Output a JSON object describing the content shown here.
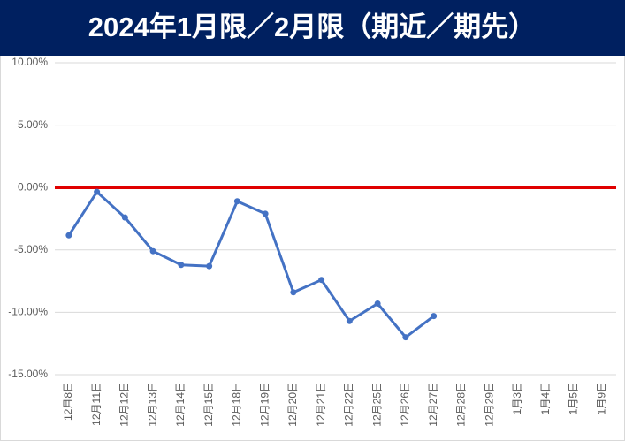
{
  "chart_data": {
    "type": "line",
    "title": "2024年1月限／2月限（期近／期先）",
    "categories": [
      "12月8日",
      "12月11日",
      "12月12日",
      "12月13日",
      "12月14日",
      "12月15日",
      "12月18日",
      "12月19日",
      "12月20日",
      "12月21日",
      "12月22日",
      "12月25日",
      "12月26日",
      "12月27日",
      "12月28日",
      "12月29日",
      "1月3日",
      "1月4日",
      "1月5日",
      "1月9日"
    ],
    "values": [
      -3.83,
      -0.35,
      -2.4,
      -5.1,
      -6.2,
      -6.3,
      -1.1,
      -2.1,
      -8.4,
      -7.4,
      -10.7,
      -9.3,
      -12.0,
      -10.3,
      null,
      null,
      null,
      null,
      null,
      null
    ],
    "color": "#4472c4",
    "reference_line": {
      "value": 0,
      "color": "#e00000"
    },
    "ylim": [
      -15,
      10
    ],
    "yticks": [
      {
        "value": -15,
        "label": "-15.00%"
      },
      {
        "value": -10,
        "label": "-10.00%"
      },
      {
        "value": -5,
        "label": "-5.00%"
      },
      {
        "value": 0,
        "label": "0.00%"
      },
      {
        "value": 5,
        "label": "5.00%"
      },
      {
        "value": 10,
        "label": "10.00%"
      }
    ],
    "grid": true
  }
}
